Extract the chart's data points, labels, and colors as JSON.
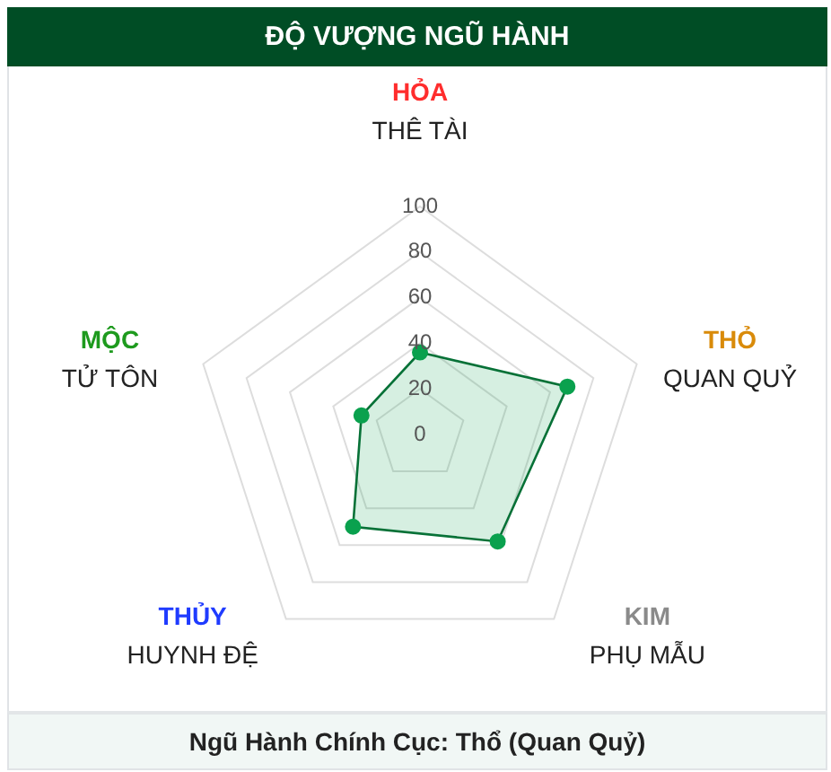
{
  "chart_data": {
    "type": "radar",
    "title": "ĐỘ VƯỢNG NGŨ HÀNH",
    "categories": [
      "HỎA\nTHÊ TÀI",
      "THỎ\nQUAN QUỶ",
      "KIM\nPHỤ MẪU",
      "THỦY\nHUYNH ĐỆ",
      "MỘC\nTỬ TÔN"
    ],
    "series": [
      {
        "color": "#0aa14e",
        "values": [
          36,
          68,
          58,
          50,
          27
        ]
      }
    ],
    "ylim": [
      0,
      100
    ],
    "yticks": [
      0,
      20,
      40,
      60,
      80,
      100
    ],
    "grid": true,
    "marker": "circle",
    "annotations": [
      "Ngũ Hành Chính Cục: Thổ (Quan Quỷ)"
    ]
  }
}
